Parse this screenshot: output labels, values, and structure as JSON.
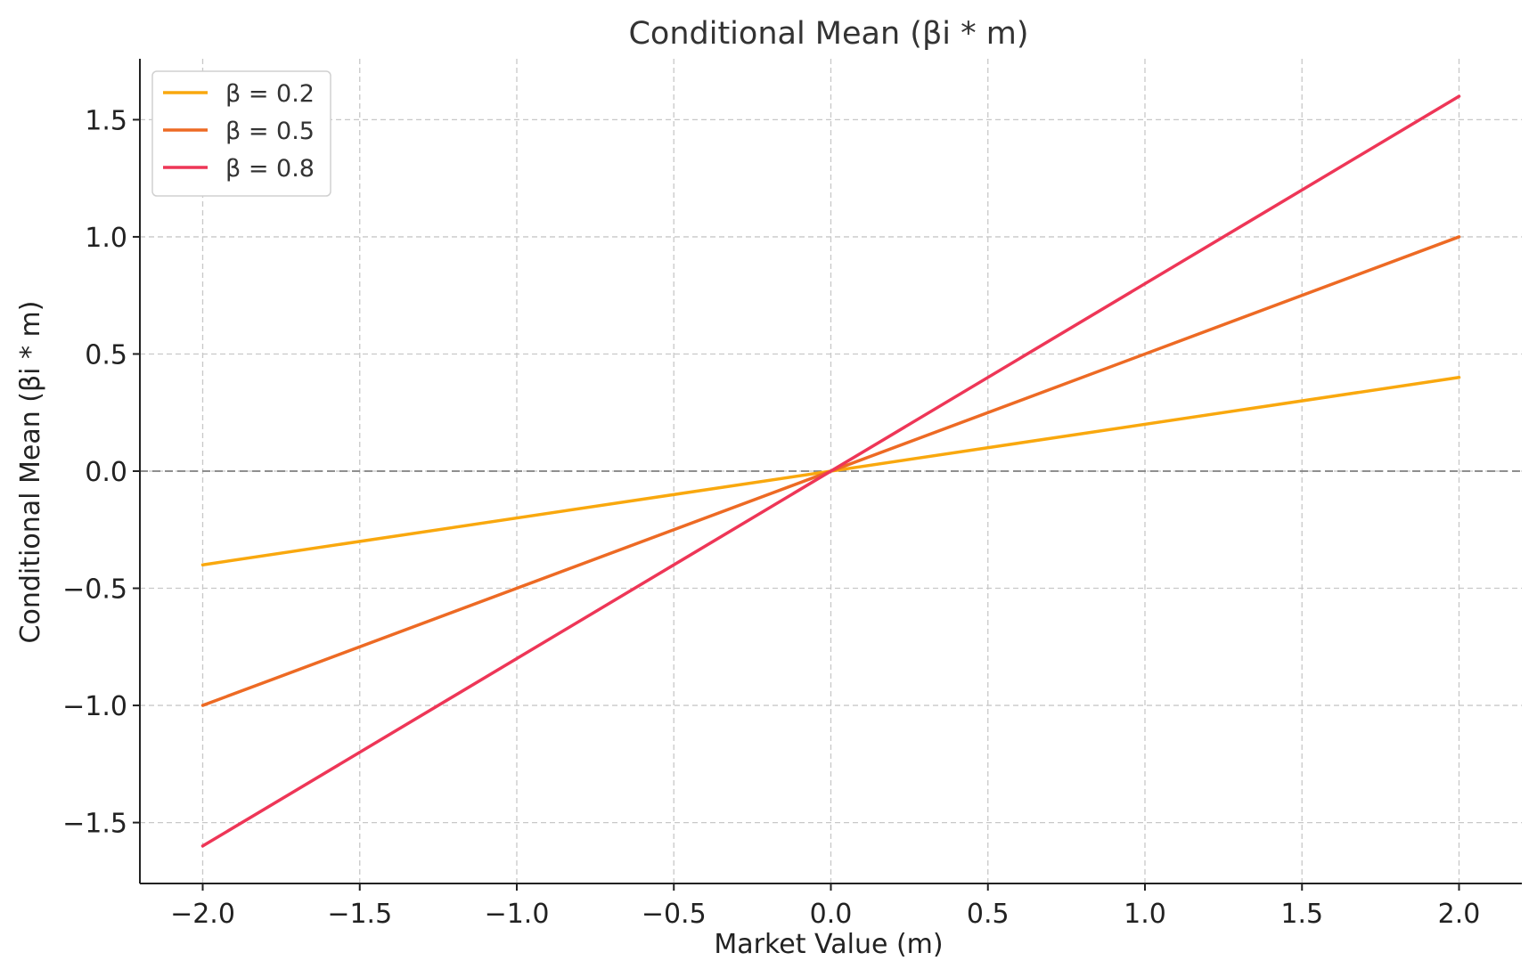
{
  "chart_data": {
    "type": "line",
    "title": "Conditional Mean (βi * m)",
    "xlabel": "Market Value (m)",
    "ylabel": "Conditional Mean (βi * m)",
    "xlim": [
      -2.2,
      2.2
    ],
    "ylim": [
      -1.76,
      1.76
    ],
    "xticks": [
      -2.0,
      -1.5,
      -1.0,
      -0.5,
      0.0,
      0.5,
      1.0,
      1.5,
      2.0
    ],
    "xtick_labels": [
      "−2.0",
      "−1.5",
      "−1.0",
      "−0.5",
      "0.0",
      "0.5",
      "1.0",
      "1.5",
      "2.0"
    ],
    "yticks": [
      -1.5,
      -1.0,
      -0.5,
      0.0,
      0.5,
      1.0,
      1.5
    ],
    "ytick_labels": [
      "−1.5",
      "−1.0",
      "−0.5",
      "0.0",
      "0.5",
      "1.0",
      "1.5"
    ],
    "grid": true,
    "reference_line_y": 0,
    "legend_position": "top-left",
    "series": [
      {
        "name": "β = 0.2",
        "color": "#F9A80E",
        "x": [
          -2.0,
          2.0
        ],
        "y": [
          -0.4,
          0.4
        ]
      },
      {
        "name": "β = 0.5",
        "color": "#ED6A24",
        "x": [
          -2.0,
          2.0
        ],
        "y": [
          -1.0,
          1.0
        ]
      },
      {
        "name": "β = 0.8",
        "color": "#EE3657",
        "x": [
          -2.0,
          2.0
        ],
        "y": [
          -1.6,
          1.6
        ]
      }
    ]
  }
}
